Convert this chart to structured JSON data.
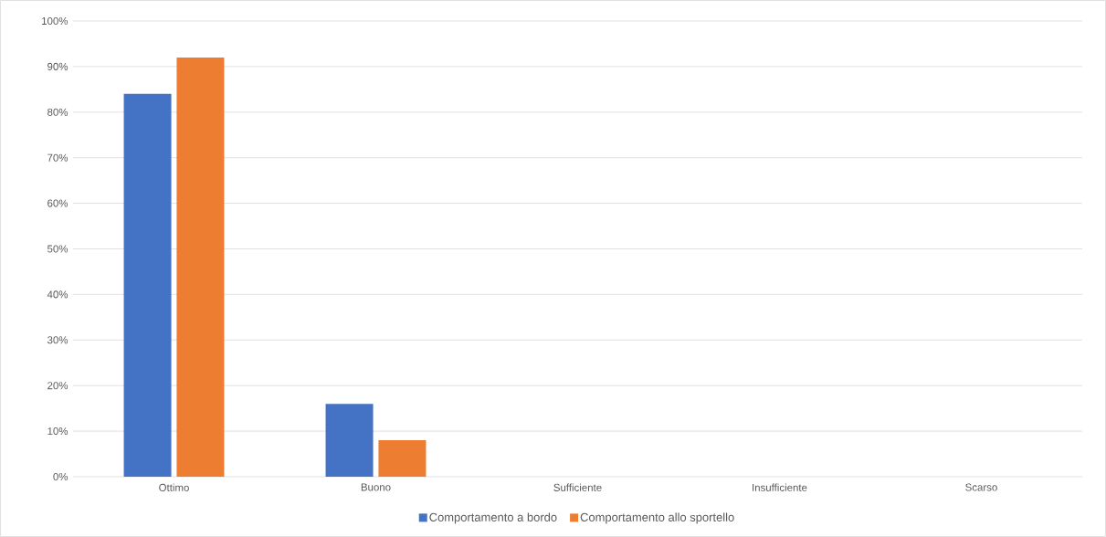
{
  "chart_data": {
    "type": "bar",
    "categories": [
      "Ottimo",
      "Buono",
      "Sufficiente",
      "Insufficiente",
      "Scarso"
    ],
    "series": [
      {
        "name": "Comportamento a bordo",
        "color": "#4472c4",
        "values": [
          84,
          16,
          0,
          0,
          0
        ]
      },
      {
        "name": "Comportamento allo sportello",
        "color": "#ed7d31",
        "values": [
          92,
          8,
          0,
          0,
          0
        ]
      }
    ],
    "ylim": [
      0,
      100
    ],
    "yticks": [
      {
        "value": 0,
        "label": "0%"
      },
      {
        "value": 10,
        "label": "10%"
      },
      {
        "value": 20,
        "label": "20%"
      },
      {
        "value": 30,
        "label": "30%"
      },
      {
        "value": 40,
        "label": "40%"
      },
      {
        "value": 50,
        "label": "50%"
      },
      {
        "value": 60,
        "label": "60%"
      },
      {
        "value": 70,
        "label": "70%"
      },
      {
        "value": 80,
        "label": "80%"
      },
      {
        "value": 90,
        "label": "90%"
      },
      {
        "value": 100,
        "label": "100%"
      }
    ],
    "grid": "y",
    "legend": "bottom"
  }
}
